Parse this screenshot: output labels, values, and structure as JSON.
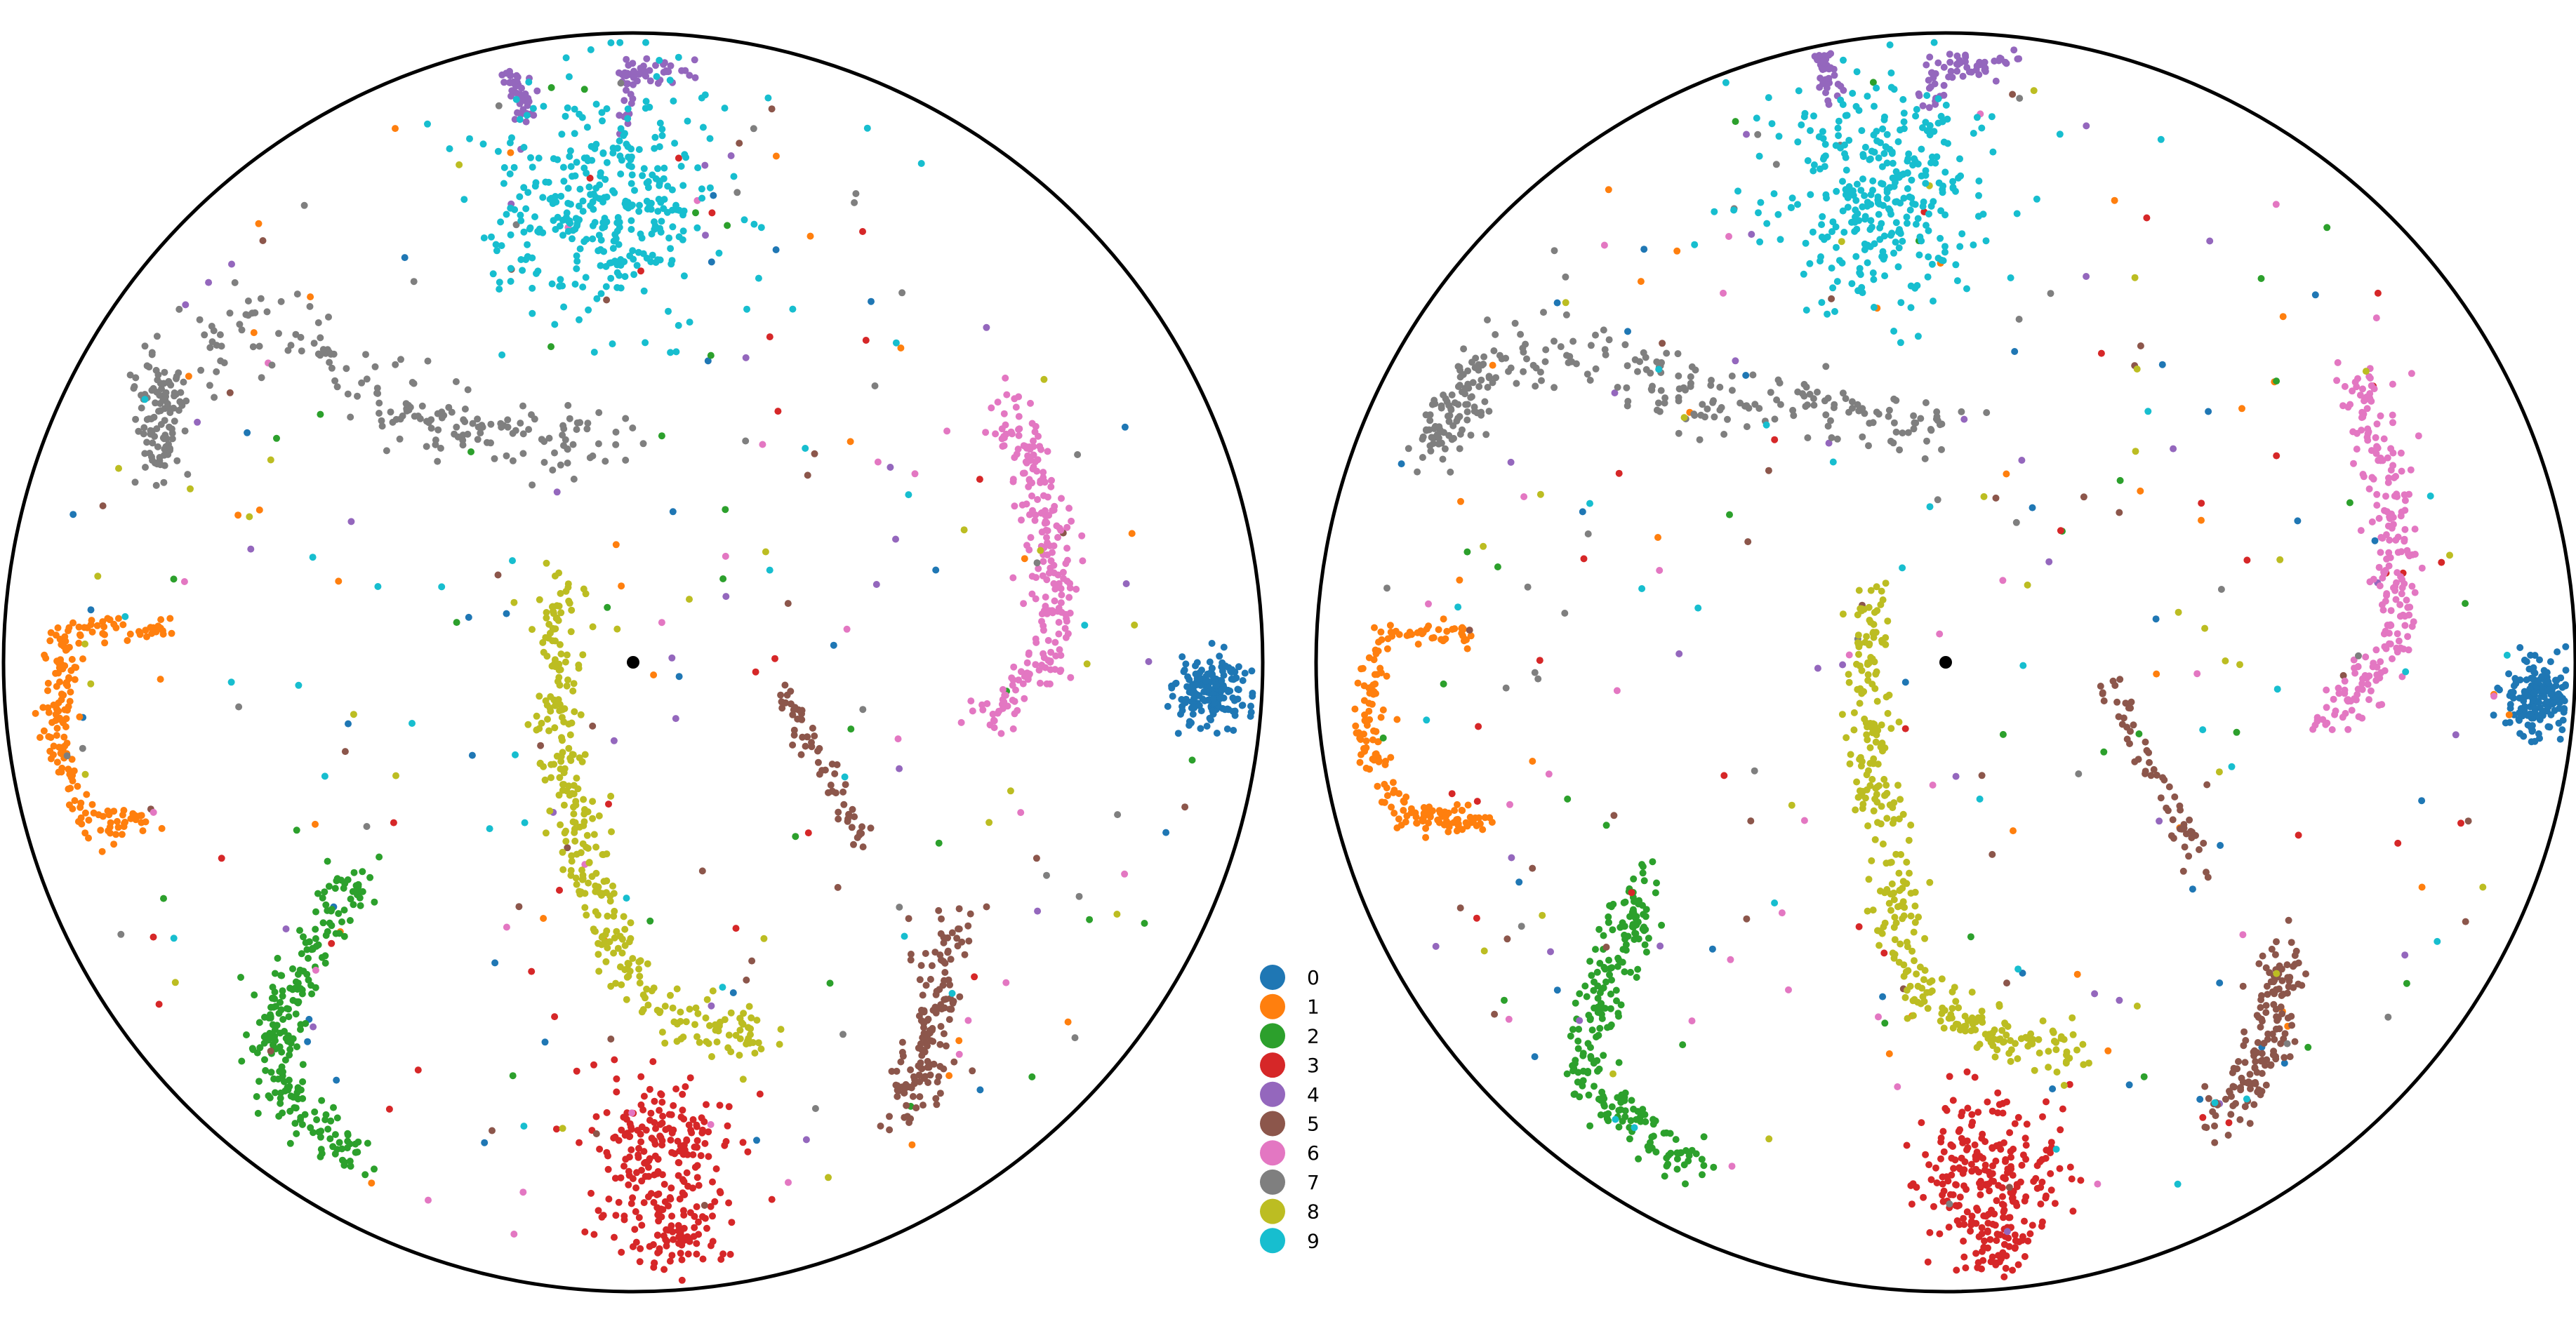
{
  "chart_data": [
    {
      "type": "scatter",
      "title": "",
      "xlabel": "",
      "ylabel": "",
      "xlim": [
        -1,
        1
      ],
      "ylim": [
        -1,
        1
      ],
      "grid": false,
      "boundary": "unit-circle",
      "center_marker": {
        "x": 0.0,
        "y": 0.0,
        "color": "#000000"
      },
      "series": [
        {
          "name": "0",
          "color": "#1f77b4",
          "clusters": [
            {
              "x": 0.92,
              "y": -0.05,
              "spread": 0.03,
              "points": 170
            }
          ]
        },
        {
          "name": "1",
          "color": "#ff7f0e",
          "clusters": [
            {
              "arc": [
                [
                  -0.9,
                  0.05
                ],
                [
                  -0.92,
                  -0.13
                ],
                [
                  -0.86,
                  -0.27
                ],
                [
                  -0.78,
                  -0.25
                ]
              ],
              "jitter": 0.012,
              "points": 150
            },
            {
              "arc": [
                [
                  -0.9,
                  0.05
                ],
                [
                  -0.82,
                  0.06
                ],
                [
                  -0.74,
                  0.05
                ]
              ],
              "jitter": 0.01,
              "points": 40
            }
          ]
        },
        {
          "name": "2",
          "color": "#2ca02c",
          "clusters": [
            {
              "arc": [
                [
                  -0.44,
                  -0.35
                ],
                [
                  -0.55,
                  -0.53
                ],
                [
                  -0.58,
                  -0.63
                ],
                [
                  -0.52,
                  -0.72
                ],
                [
                  -0.43,
                  -0.79
                ]
              ],
              "jitter": 0.02,
              "points": 240
            }
          ]
        },
        {
          "name": "3",
          "color": "#d62728",
          "clusters": [
            {
              "x": 0.05,
              "y": -0.78,
              "spread": 0.06,
              "points": 210
            },
            {
              "x": 0.07,
              "y": -0.91,
              "spread": 0.03,
              "points": 60
            }
          ]
        },
        {
          "name": "4",
          "color": "#9467bd",
          "clusters": [
            {
              "arc": [
                [
                  -0.19,
                  0.94
                ],
                [
                  -0.17,
                  0.86
                ]
              ],
              "jitter": 0.01,
              "points": 40
            },
            {
              "arc": [
                [
                  -0.02,
                  0.86
                ],
                [
                  0.0,
                  0.94
                ],
                [
                  0.1,
                  0.94
                ]
              ],
              "jitter": 0.01,
              "points": 60
            }
          ]
        },
        {
          "name": "5",
          "color": "#8c564b",
          "clusters": [
            {
              "arc": [
                [
                  0.24,
                  -0.04
                ],
                [
                  0.37,
                  -0.3
                ]
              ],
              "jitter": 0.012,
              "points": 60
            },
            {
              "arc": [
                [
                  0.5,
                  -0.42
                ],
                [
                  0.48,
                  -0.6
                ],
                [
                  0.42,
                  -0.72
                ]
              ],
              "jitter": 0.022,
              "points": 150
            }
          ]
        },
        {
          "name": "6",
          "color": "#e377c2",
          "clusters": [
            {
              "arc": [
                [
                  0.6,
                  0.42
                ],
                [
                  0.67,
                  0.2
                ],
                [
                  0.66,
                  0.0
                ],
                [
                  0.55,
                  -0.1
                ]
              ],
              "jitter": 0.02,
              "points": 240
            }
          ]
        },
        {
          "name": "7",
          "color": "#7f7f7f",
          "clusters": [
            {
              "arc": [
                [
                  -0.75,
                  0.45
                ],
                [
                  -0.75,
                  0.3
                ]
              ],
              "jitter": 0.02,
              "points": 100
            },
            {
              "arc": [
                [
                  -0.75,
                  0.45
                ],
                [
                  -0.58,
                  0.55
                ],
                [
                  -0.45,
                  0.45
                ],
                [
                  -0.3,
                  0.38
                ],
                [
                  -0.02,
                  0.34
                ]
              ],
              "jitter": 0.03,
              "points": 190
            }
          ]
        },
        {
          "name": "8",
          "color": "#bcbd22",
          "clusters": [
            {
              "arc": [
                [
                  -0.11,
                  0.12
                ],
                [
                  -0.12,
                  -0.1
                ],
                [
                  -0.06,
                  -0.38
                ],
                [
                  0.03,
                  -0.55
                ],
                [
                  0.2,
                  -0.6
                ]
              ],
              "jitter": 0.02,
              "points": 330
            }
          ]
        },
        {
          "name": "9",
          "color": "#17becf",
          "clusters": [
            {
              "x": -0.05,
              "y": 0.73,
              "spread": 0.09,
              "points": 360
            }
          ]
        }
      ],
      "noise_points_per_series": 30
    },
    {
      "type": "scatter",
      "title": "",
      "xlabel": "",
      "ylabel": "",
      "xlim": [
        -1,
        1
      ],
      "ylim": [
        -1,
        1
      ],
      "grid": false,
      "boundary": "unit-circle",
      "center_marker": {
        "x": 0.0,
        "y": 0.0,
        "color": "#000000"
      },
      "series": [
        {
          "name": "0",
          "color": "#1f77b4",
          "clusters": [
            {
              "x": 0.94,
              "y": -0.06,
              "spread": 0.03,
              "points": 160
            }
          ]
        },
        {
          "name": "1",
          "color": "#ff7f0e",
          "clusters": [
            {
              "arc": [
                [
                  -0.9,
                  0.03
                ],
                [
                  -0.92,
                  -0.13
                ],
                [
                  -0.85,
                  -0.25
                ],
                [
                  -0.72,
                  -0.25
                ]
              ],
              "jitter": 0.012,
              "points": 150
            },
            {
              "arc": [
                [
                  -0.9,
                  0.05
                ],
                [
                  -0.82,
                  0.05
                ],
                [
                  -0.74,
                  0.04
                ]
              ],
              "jitter": 0.01,
              "points": 40
            }
          ]
        },
        {
          "name": "2",
          "color": "#2ca02c",
          "clusters": [
            {
              "arc": [
                [
                  -0.47,
                  -0.33
                ],
                [
                  -0.55,
                  -0.55
                ],
                [
                  -0.58,
                  -0.65
                ],
                [
                  -0.48,
                  -0.75
                ],
                [
                  -0.4,
                  -0.8
                ]
              ],
              "jitter": 0.02,
              "points": 240
            }
          ]
        },
        {
          "name": "3",
          "color": "#d62728",
          "clusters": [
            {
              "x": 0.07,
              "y": -0.8,
              "spread": 0.06,
              "points": 210
            },
            {
              "x": 0.08,
              "y": -0.92,
              "spread": 0.03,
              "points": 60
            }
          ]
        },
        {
          "name": "4",
          "color": "#9467bd",
          "clusters": [
            {
              "arc": [
                [
                  -0.2,
                  0.97
                ],
                [
                  -0.18,
                  0.9
                ]
              ],
              "jitter": 0.01,
              "points": 40
            },
            {
              "arc": [
                [
                  -0.03,
                  0.88
                ],
                [
                  -0.02,
                  0.94
                ],
                [
                  0.12,
                  0.96
                ]
              ],
              "jitter": 0.01,
              "points": 60
            }
          ]
        },
        {
          "name": "5",
          "color": "#8c564b",
          "clusters": [
            {
              "arc": [
                [
                  0.25,
                  -0.03
                ],
                [
                  0.42,
                  -0.34
                ]
              ],
              "jitter": 0.012,
              "points": 60
            },
            {
              "arc": [
                [
                  0.53,
                  -0.46
                ],
                [
                  0.52,
                  -0.62
                ],
                [
                  0.43,
                  -0.73
                ]
              ],
              "jitter": 0.022,
              "points": 150
            }
          ]
        },
        {
          "name": "6",
          "color": "#e377c2",
          "clusters": [
            {
              "arc": [
                [
                  0.66,
                  0.45
                ],
                [
                  0.72,
                  0.2
                ],
                [
                  0.7,
                  0.0
                ],
                [
                  0.6,
                  -0.1
                ]
              ],
              "jitter": 0.02,
              "points": 240
            }
          ]
        },
        {
          "name": "7",
          "color": "#7f7f7f",
          "clusters": [
            {
              "arc": [
                [
                  -0.74,
                  0.47
                ],
                [
                  -0.82,
                  0.33
                ]
              ],
              "jitter": 0.02,
              "points": 100
            },
            {
              "arc": [
                [
                  -0.74,
                  0.47
                ],
                [
                  -0.55,
                  0.5
                ],
                [
                  -0.4,
                  0.42
                ],
                [
                  -0.2,
                  0.4
                ],
                [
                  0.0,
                  0.38
                ]
              ],
              "jitter": 0.03,
              "points": 190
            }
          ]
        },
        {
          "name": "8",
          "color": "#bcbd22",
          "clusters": [
            {
              "arc": [
                [
                  -0.12,
                  0.1
                ],
                [
                  -0.12,
                  -0.15
                ],
                [
                  -0.05,
                  -0.52
                ],
                [
                  0.1,
                  -0.6
                ],
                [
                  0.22,
                  -0.63
                ]
              ],
              "jitter": 0.02,
              "points": 330
            }
          ]
        },
        {
          "name": "9",
          "color": "#17becf",
          "clusters": [
            {
              "x": -0.1,
              "y": 0.75,
              "spread": 0.09,
              "points": 340
            }
          ]
        }
      ],
      "noise_points_per_series": 30
    }
  ],
  "legend": {
    "placement": "between-panels-bottom",
    "items": [
      {
        "label": "0",
        "color": "#1f77b4"
      },
      {
        "label": "1",
        "color": "#ff7f0e"
      },
      {
        "label": "2",
        "color": "#2ca02c"
      },
      {
        "label": "3",
        "color": "#d62728"
      },
      {
        "label": "4",
        "color": "#9467bd"
      },
      {
        "label": "5",
        "color": "#8c564b"
      },
      {
        "label": "6",
        "color": "#e377c2"
      },
      {
        "label": "7",
        "color": "#7f7f7f"
      },
      {
        "label": "8",
        "color": "#bcbd22"
      },
      {
        "label": "9",
        "color": "#17becf"
      }
    ]
  }
}
